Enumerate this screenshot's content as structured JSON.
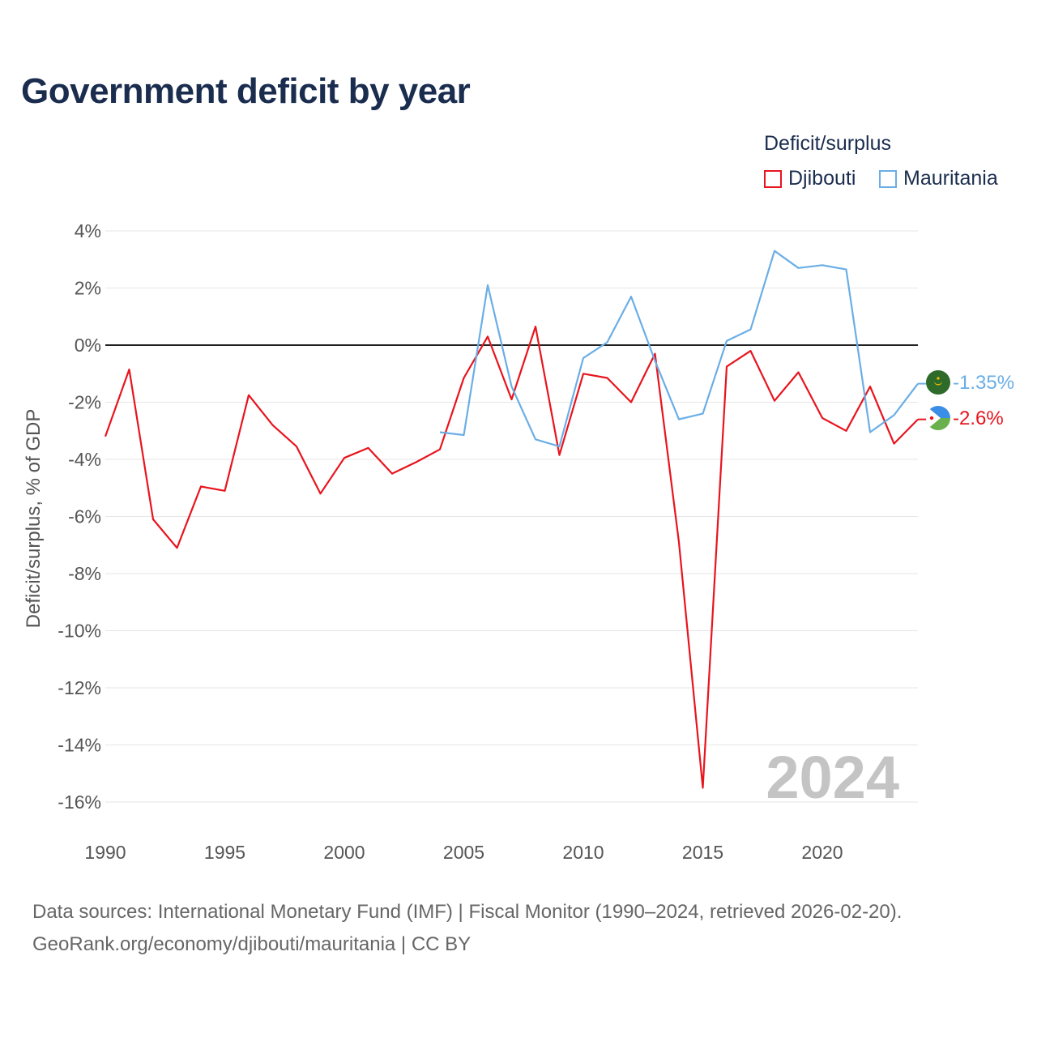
{
  "title": "Government deficit by year",
  "legend": {
    "title": "Deficit/surplus",
    "items": [
      {
        "label": "Djibouti",
        "color": "#e8141e"
      },
      {
        "label": "Mauritania",
        "color": "#6aaee6"
      }
    ]
  },
  "footer": {
    "line1": "Data sources: International Monetary Fund (IMF) | Fiscal Monitor (1990–2024, retrieved 2026-02-20).",
    "line2": "GeoRank.org/economy/djibouti/mauritania | CC BY"
  },
  "chart_data": {
    "type": "line",
    "title": "Government deficit by year",
    "xlabel": "",
    "ylabel": "Deficit/surplus, % of GDP",
    "xlim": [
      1990,
      2024
    ],
    "ylim": [
      -16,
      4
    ],
    "x_ticks": [
      1990,
      1995,
      2000,
      2005,
      2010,
      2015,
      2020
    ],
    "y_ticks": [
      4,
      2,
      0,
      -2,
      -4,
      -6,
      -8,
      -10,
      -12,
      -14,
      -16
    ],
    "y_tick_labels": [
      "4%",
      "2%",
      "0%",
      "-2%",
      "-4%",
      "-6%",
      "-8%",
      "-10%",
      "-12%",
      "-14%",
      "-16%"
    ],
    "watermark_year": "2024",
    "series": [
      {
        "name": "Djibouti",
        "color": "#e8141e",
        "end_label": "-2.6%",
        "x": [
          1990,
          1991,
          1992,
          1993,
          1994,
          1995,
          1996,
          1997,
          1998,
          1999,
          2000,
          2001,
          2002,
          2003,
          2004,
          2005,
          2006,
          2007,
          2008,
          2009,
          2010,
          2011,
          2012,
          2013,
          2014,
          2015,
          2016,
          2017,
          2018,
          2019,
          2020,
          2021,
          2022,
          2023,
          2024
        ],
        "values": [
          -3.2,
          -0.85,
          -6.1,
          -7.1,
          -4.95,
          -5.1,
          -1.75,
          -2.8,
          -3.55,
          -5.2,
          -3.95,
          -3.6,
          -4.5,
          -4.1,
          -3.65,
          -1.15,
          0.3,
          -1.9,
          0.65,
          -3.85,
          -1.0,
          -1.15,
          -2.0,
          -0.3,
          -6.9,
          -15.5,
          -0.75,
          -0.2,
          -1.95,
          -0.95,
          -2.55,
          -3.0,
          -1.45,
          -3.45,
          -2.6
        ]
      },
      {
        "name": "Mauritania",
        "color": "#6aaee6",
        "end_label": "-1.35%",
        "x": [
          2004,
          2005,
          2006,
          2007,
          2008,
          2009,
          2010,
          2011,
          2012,
          2013,
          2014,
          2015,
          2016,
          2017,
          2018,
          2019,
          2020,
          2021,
          2022,
          2023,
          2024
        ],
        "values": [
          -3.05,
          -3.15,
          2.1,
          -1.45,
          -3.3,
          -3.55,
          -0.45,
          0.1,
          1.7,
          -0.55,
          -2.6,
          -2.4,
          0.15,
          0.55,
          3.3,
          2.7,
          2.8,
          2.65,
          -3.05,
          -2.45,
          -1.35
        ]
      }
    ]
  }
}
